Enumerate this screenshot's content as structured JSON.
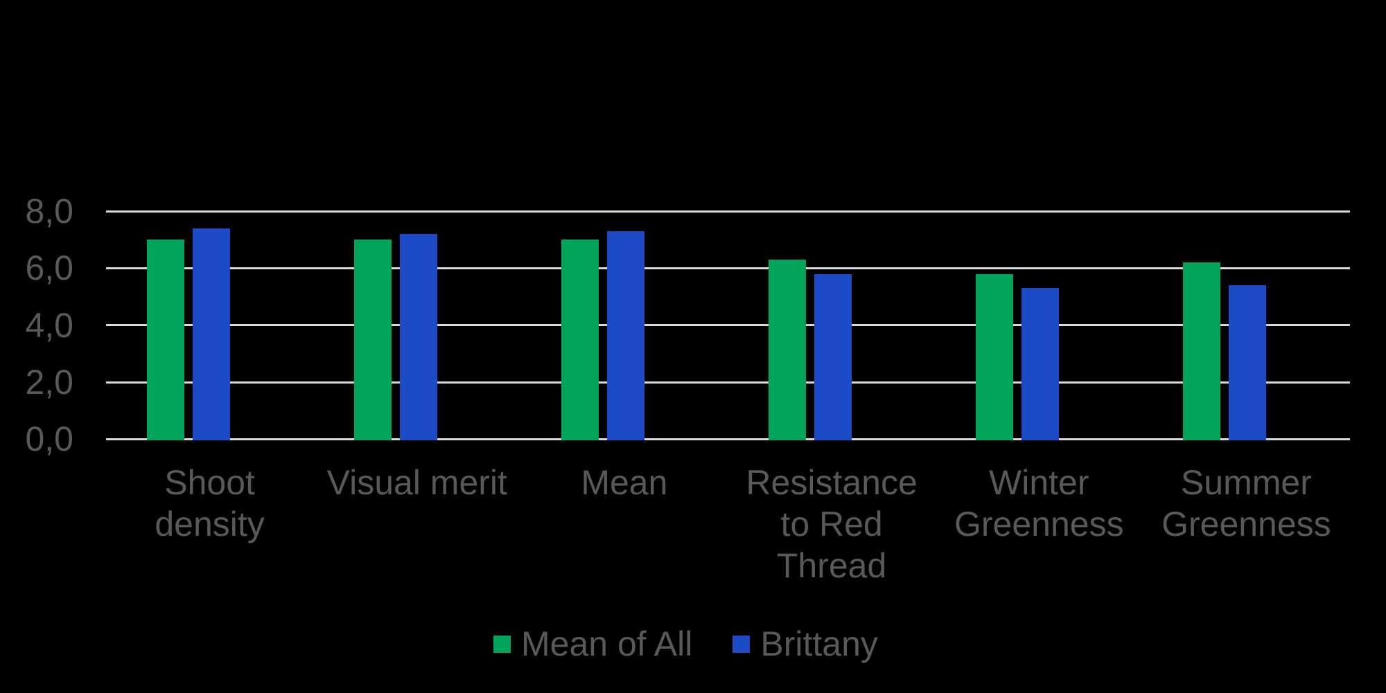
{
  "chart_data": {
    "type": "bar",
    "title": "",
    "categories": [
      "Shoot density",
      "Visual merit",
      "Mean",
      "Resistance to Red Thread",
      "Winter Greenness",
      "Summer Greenness"
    ],
    "category_lines": [
      [
        "Shoot",
        "density"
      ],
      [
        "Visual merit"
      ],
      [
        "Mean"
      ],
      [
        "Resistance",
        "to Red",
        "Thread"
      ],
      [
        "Winter",
        "Greenness"
      ],
      [
        "Summer",
        "Greenness"
      ]
    ],
    "series": [
      {
        "name": "Mean of All",
        "color": "#00A45A",
        "values": [
          7.0,
          7.0,
          7.0,
          6.3,
          5.8,
          6.2
        ]
      },
      {
        "name": "Brittany",
        "color": "#1C4BC8",
        "values": [
          7.4,
          7.2,
          7.3,
          5.8,
          5.3,
          5.4
        ]
      }
    ],
    "ylim": [
      0,
      8
    ],
    "y_ticks": {
      "values": [
        8,
        6,
        4,
        2,
        0
      ],
      "labels": [
        "8,0",
        "6,0",
        "4,0",
        "2,0",
        "0,0"
      ]
    },
    "grid": "horizontal",
    "legend_position": "bottom",
    "number_format": "comma-decimal"
  },
  "colors": {
    "background": "#000000",
    "gridline": "#D9D9D9",
    "axis_text": "#595959",
    "legend_text": "#595959"
  },
  "legend": {
    "items": [
      {
        "label": "Mean of All",
        "color": "#00A45A"
      },
      {
        "label": "Brittany",
        "color": "#1C4BC8"
      }
    ]
  }
}
